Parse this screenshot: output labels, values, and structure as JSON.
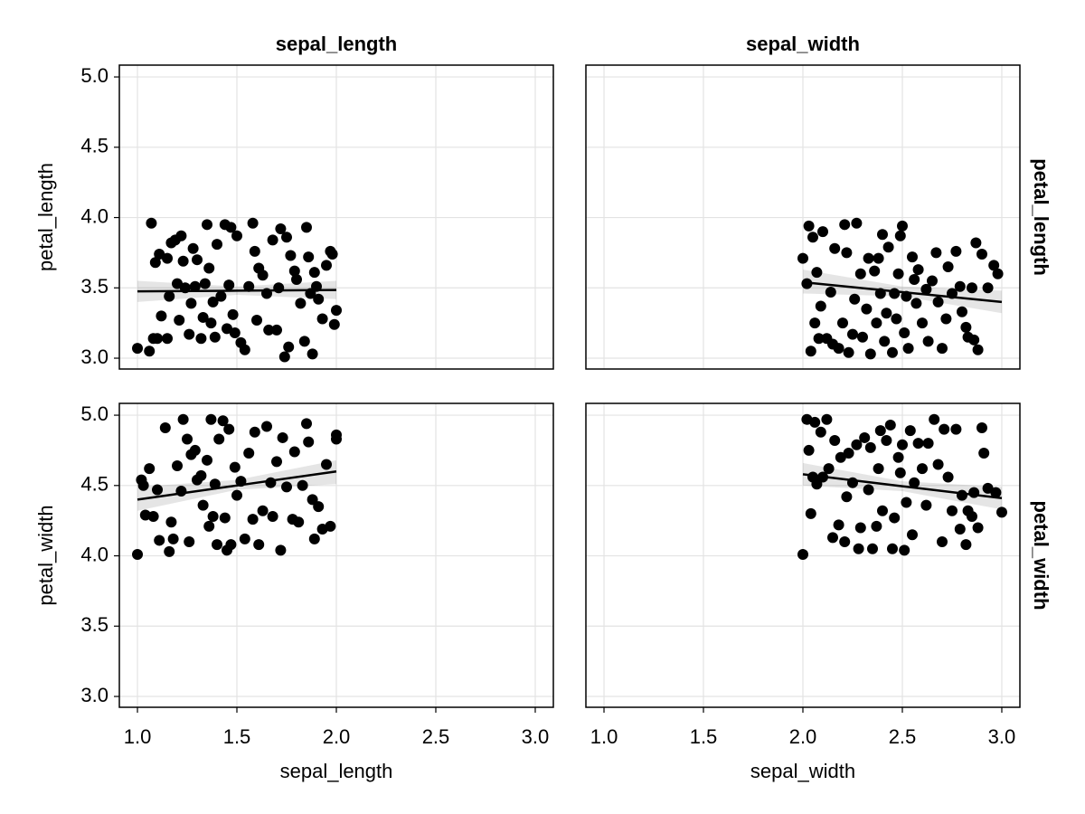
{
  "chart_data": [
    {
      "type": "scatter",
      "title": "sepal_length",
      "ylabel": "petal_length",
      "color": "#000000",
      "grid": true,
      "xlim": [
        0.909,
        3.091
      ],
      "ylim": [
        2.923,
        5.084
      ],
      "xticks": [
        1,
        1.5,
        2,
        2.5,
        3
      ],
      "xtick_labels": false,
      "yticks": [
        {
          "value": 3,
          "label": "3.0"
        },
        {
          "value": 3.5,
          "label": "3.5"
        },
        {
          "value": 4,
          "label": "4.0"
        },
        {
          "value": 4.5,
          "label": "4.5"
        },
        {
          "value": 5,
          "label": "5.0"
        }
      ],
      "ytick_labels": true,
      "x": [
        1.0,
        1.06,
        1.07,
        1.08,
        1.1,
        1.09,
        1.11,
        1.12,
        1.15,
        1.15,
        1.16,
        1.17,
        1.19,
        1.2,
        1.21,
        1.22,
        1.23,
        1.24,
        1.26,
        1.27,
        1.28,
        1.29,
        1.3,
        1.32,
        1.33,
        1.34,
        1.35,
        1.36,
        1.37,
        1.38,
        1.39,
        1.4,
        1.42,
        1.44,
        1.45,
        1.46,
        1.47,
        1.48,
        1.49,
        1.5,
        1.52,
        1.54,
        1.56,
        1.58,
        1.59,
        1.6,
        1.61,
        1.63,
        1.65,
        1.66,
        1.68,
        1.7,
        1.71,
        1.72,
        1.74,
        1.75,
        1.76,
        1.77,
        1.79,
        1.8,
        1.82,
        1.84,
        1.85,
        1.86,
        1.87,
        1.88,
        1.89,
        1.9,
        1.91,
        1.93,
        1.95,
        1.97,
        1.98,
        1.99,
        2.0
      ],
      "y": [
        3.07,
        3.05,
        3.96,
        3.14,
        3.14,
        3.68,
        3.74,
        3.3,
        3.71,
        3.14,
        3.44,
        3.82,
        3.84,
        3.53,
        3.27,
        3.87,
        3.69,
        3.5,
        3.17,
        3.39,
        3.78,
        3.51,
        3.7,
        3.14,
        3.29,
        3.53,
        3.95,
        3.64,
        3.25,
        3.4,
        3.15,
        3.81,
        3.44,
        3.95,
        3.21,
        3.52,
        3.93,
        3.31,
        3.18,
        3.87,
        3.11,
        3.06,
        3.51,
        3.96,
        3.76,
        3.27,
        3.64,
        3.59,
        3.46,
        3.2,
        3.84,
        3.2,
        3.5,
        3.92,
        3.01,
        3.86,
        3.08,
        3.73,
        3.62,
        3.56,
        3.39,
        3.12,
        3.93,
        3.72,
        3.46,
        3.03,
        3.61,
        3.51,
        3.42,
        3.28,
        3.66,
        3.76,
        3.74,
        3.24,
        3.34
      ],
      "fit": {
        "x": [
          1,
          1.5,
          2
        ],
        "y": [
          3.475,
          3.48,
          3.485
        ],
        "lower": [
          3.4,
          3.45,
          3.42
        ],
        "upper": [
          3.55,
          3.51,
          3.55
        ]
      }
    },
    {
      "type": "scatter",
      "title": "sepal_width",
      "row_label": "petal_length",
      "color": "#000000",
      "grid": true,
      "xlim": [
        0.909,
        3.091
      ],
      "ylim": [
        2.923,
        5.084
      ],
      "xticks": [
        1,
        1.5,
        2,
        2.5,
        3
      ],
      "xtick_labels": false,
      "yticks": [
        3,
        3.5,
        4,
        4.5,
        5
      ],
      "ytick_labels": false,
      "x": [
        2.0,
        2.02,
        2.03,
        2.04,
        2.05,
        2.06,
        2.07,
        2.08,
        2.09,
        2.1,
        2.12,
        2.14,
        2.15,
        2.16,
        2.18,
        2.2,
        2.21,
        2.22,
        2.23,
        2.25,
        2.26,
        2.27,
        2.29,
        2.3,
        2.32,
        2.33,
        2.34,
        2.36,
        2.37,
        2.38,
        2.39,
        2.4,
        2.41,
        2.42,
        2.43,
        2.45,
        2.46,
        2.47,
        2.48,
        2.49,
        2.5,
        2.51,
        2.52,
        2.53,
        2.55,
        2.56,
        2.57,
        2.58,
        2.6,
        2.62,
        2.63,
        2.65,
        2.67,
        2.68,
        2.7,
        2.72,
        2.73,
        2.75,
        2.77,
        2.79,
        2.8,
        2.82,
        2.83,
        2.85,
        2.86,
        2.87,
        2.88,
        2.9,
        2.93,
        2.96,
        2.98
      ],
      "y": [
        3.71,
        3.53,
        3.94,
        3.05,
        3.86,
        3.25,
        3.61,
        3.14,
        3.37,
        3.9,
        3.14,
        3.47,
        3.1,
        3.78,
        3.07,
        3.25,
        3.95,
        3.75,
        3.04,
        3.17,
        3.42,
        3.96,
        3.6,
        3.15,
        3.35,
        3.71,
        3.03,
        3.62,
        3.25,
        3.71,
        3.46,
        3.88,
        3.12,
        3.32,
        3.79,
        3.04,
        3.46,
        3.28,
        3.6,
        3.87,
        3.94,
        3.18,
        3.44,
        3.07,
        3.72,
        3.56,
        3.39,
        3.63,
        3.25,
        3.49,
        3.12,
        3.55,
        3.75,
        3.4,
        3.07,
        3.28,
        3.65,
        3.46,
        3.76,
        3.51,
        3.33,
        3.22,
        3.15,
        3.5,
        3.13,
        3.82,
        3.06,
        3.74,
        3.5,
        3.66,
        3.6
      ],
      "fit": {
        "x": [
          2,
          2.5,
          3
        ],
        "y": [
          3.54,
          3.47,
          3.4
        ],
        "lower": [
          3.46,
          3.44,
          3.32
        ],
        "upper": [
          3.63,
          3.51,
          3.48
        ]
      }
    },
    {
      "type": "scatter",
      "xlabel": "sepal_length",
      "ylabel": "petal_width",
      "color": "#000000",
      "grid": true,
      "xlim": [
        0.909,
        3.091
      ],
      "ylim": [
        2.923,
        5.084
      ],
      "xticks": [
        {
          "value": 1,
          "label": "1.0"
        },
        {
          "value": 1.5,
          "label": "1.5"
        },
        {
          "value": 2,
          "label": "2.0"
        },
        {
          "value": 2.5,
          "label": "2.5"
        },
        {
          "value": 3,
          "label": "3.0"
        }
      ],
      "xtick_labels": true,
      "yticks": [
        {
          "value": 3,
          "label": "3.0"
        },
        {
          "value": 3.5,
          "label": "3.5"
        },
        {
          "value": 4,
          "label": "4.0"
        },
        {
          "value": 4.5,
          "label": "4.5"
        },
        {
          "value": 5,
          "label": "5.0"
        }
      ],
      "ytick_labels": true,
      "x": [
        1.0,
        1.02,
        1.03,
        1.04,
        1.06,
        1.08,
        1.1,
        1.11,
        1.14,
        1.16,
        1.17,
        1.18,
        1.2,
        1.22,
        1.23,
        1.25,
        1.26,
        1.27,
        1.29,
        1.3,
        1.32,
        1.33,
        1.35,
        1.36,
        1.37,
        1.38,
        1.39,
        1.4,
        1.41,
        1.43,
        1.44,
        1.45,
        1.46,
        1.47,
        1.49,
        1.5,
        1.52,
        1.54,
        1.56,
        1.58,
        1.59,
        1.61,
        1.63,
        1.65,
        1.67,
        1.68,
        1.7,
        1.72,
        1.73,
        1.75,
        1.78,
        1.79,
        1.81,
        1.83,
        1.85,
        1.86,
        1.88,
        1.89,
        1.91,
        1.93,
        1.95,
        1.97,
        2.0,
        2.0
      ],
      "y": [
        4.01,
        4.54,
        4.5,
        4.29,
        4.62,
        4.28,
        4.47,
        4.11,
        4.91,
        4.03,
        4.24,
        4.12,
        4.64,
        4.46,
        4.97,
        4.83,
        4.1,
        4.72,
        4.75,
        4.54,
        4.57,
        4.36,
        4.68,
        4.21,
        4.97,
        4.28,
        4.51,
        4.08,
        4.83,
        4.96,
        4.27,
        4.04,
        4.9,
        4.08,
        4.63,
        4.43,
        4.53,
        4.12,
        4.73,
        4.26,
        4.88,
        4.08,
        4.32,
        4.92,
        4.52,
        4.28,
        4.67,
        4.04,
        4.84,
        4.49,
        4.26,
        4.74,
        4.24,
        4.5,
        4.94,
        4.81,
        4.4,
        4.12,
        4.35,
        4.19,
        4.65,
        4.21,
        4.83,
        4.86
      ],
      "fit": {
        "x": [
          1,
          1.5,
          2
        ],
        "y": [
          4.4,
          4.5,
          4.6
        ],
        "lower": [
          4.32,
          4.47,
          4.51
        ],
        "upper": [
          4.49,
          4.54,
          4.68
        ]
      }
    },
    {
      "type": "scatter",
      "xlabel": "sepal_width",
      "row_label": "petal_width",
      "color": "#000000",
      "grid": true,
      "xlim": [
        0.909,
        3.091
      ],
      "ylim": [
        2.923,
        5.084
      ],
      "xticks": [
        {
          "value": 1,
          "label": "1.0"
        },
        {
          "value": 1.5,
          "label": "1.5"
        },
        {
          "value": 2,
          "label": "2.0"
        },
        {
          "value": 2.5,
          "label": "2.5"
        },
        {
          "value": 3,
          "label": "3.0"
        }
      ],
      "xtick_labels": true,
      "yticks": [
        3,
        3.5,
        4,
        4.5,
        5
      ],
      "ytick_labels": false,
      "x": [
        2.0,
        2.02,
        2.03,
        2.04,
        2.05,
        2.06,
        2.07,
        2.09,
        2.1,
        2.12,
        2.13,
        2.15,
        2.16,
        2.18,
        2.19,
        2.21,
        2.22,
        2.23,
        2.25,
        2.27,
        2.28,
        2.29,
        2.31,
        2.33,
        2.34,
        2.35,
        2.37,
        2.38,
        2.39,
        2.4,
        2.42,
        2.44,
        2.45,
        2.46,
        2.48,
        2.49,
        2.5,
        2.51,
        2.52,
        2.54,
        2.55,
        2.56,
        2.58,
        2.6,
        2.62,
        2.63,
        2.66,
        2.68,
        2.7,
        2.71,
        2.73,
        2.75,
        2.77,
        2.79,
        2.8,
        2.82,
        2.83,
        2.85,
        2.86,
        2.88,
        2.9,
        2.91,
        2.93,
        2.97,
        3.0
      ],
      "y": [
        4.01,
        4.97,
        4.75,
        4.3,
        4.56,
        4.95,
        4.51,
        4.88,
        4.56,
        4.97,
        4.62,
        4.13,
        4.82,
        4.22,
        4.7,
        4.1,
        4.42,
        4.73,
        4.52,
        4.79,
        4.05,
        4.2,
        4.84,
        4.47,
        4.77,
        4.05,
        4.21,
        4.62,
        4.89,
        4.32,
        4.82,
        4.93,
        4.05,
        4.27,
        4.7,
        4.59,
        4.79,
        4.04,
        4.38,
        4.89,
        4.15,
        4.52,
        4.8,
        4.62,
        4.36,
        4.8,
        4.97,
        4.65,
        4.1,
        4.9,
        4.56,
        4.32,
        4.9,
        4.19,
        4.43,
        4.08,
        4.32,
        4.28,
        4.45,
        4.2,
        4.91,
        4.73,
        4.48,
        4.45,
        4.31
      ],
      "fit": {
        "x": [
          2,
          2.5,
          3
        ],
        "y": [
          4.58,
          4.495,
          4.41
        ],
        "lower": [
          4.5,
          4.46,
          4.33
        ],
        "upper": [
          4.66,
          4.53,
          4.49
        ]
      }
    }
  ]
}
